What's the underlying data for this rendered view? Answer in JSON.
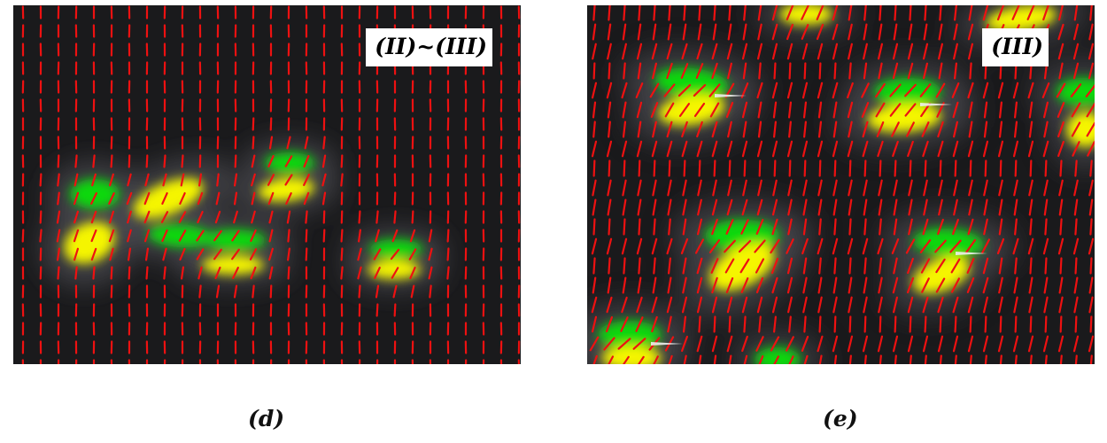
{
  "panels": {
    "d": {
      "label": "(II)~(III)",
      "caption": "(d)",
      "background": "#1a1a1c",
      "director_color": "#ee1111",
      "positive_color": "#f5f500",
      "negative_color": "#11d811",
      "defect_color": "#eeeeee"
    },
    "e": {
      "label": "(III)",
      "caption": "(e)",
      "background": "#1a1a1c",
      "director_color": "#ee1111",
      "positive_color": "#f5f500",
      "negative_color": "#11d811",
      "defect_color": "#eeeeee"
    }
  }
}
